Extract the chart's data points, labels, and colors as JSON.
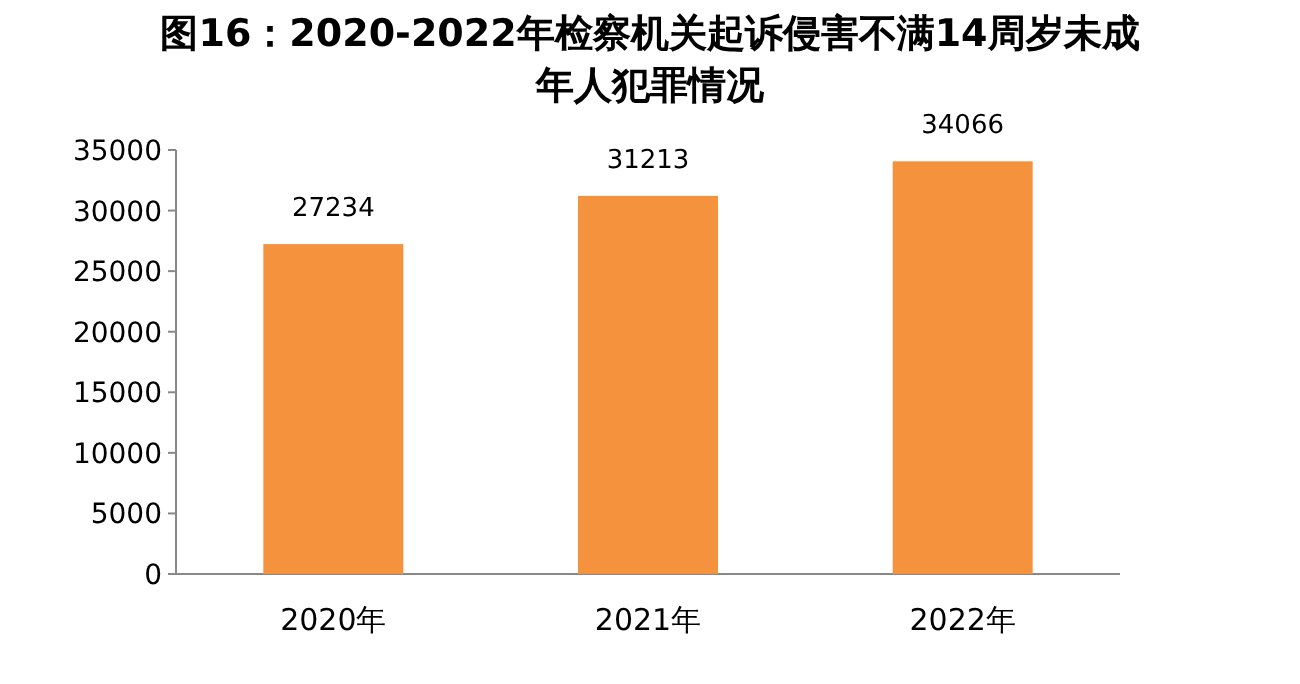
{
  "chart_data": {
    "type": "bar",
    "title": "图16：2020-2022年检察机关起诉侵害不满14周岁未成年人犯罪情况",
    "categories": [
      "2020年",
      "2021年",
      "2022年"
    ],
    "values": [
      27234,
      31213,
      34066
    ],
    "color": "#f5923e",
    "ylim": [
      0,
      35000
    ],
    "yticks": [
      0,
      5000,
      10000,
      15000,
      20000,
      25000,
      30000,
      35000
    ],
    "data_labels": true
  }
}
